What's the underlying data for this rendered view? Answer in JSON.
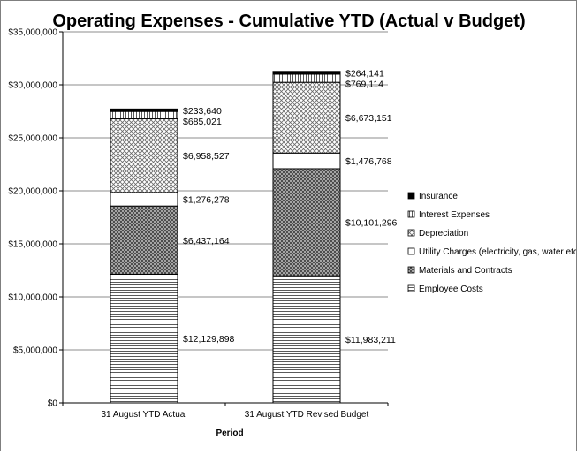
{
  "chart_data": {
    "type": "bar",
    "stacked": true,
    "title": "Operating Expenses - Cumulative YTD (Actual v Budget)",
    "xlabel": "Period",
    "ylabel": "",
    "ylim": [
      0,
      35000000
    ],
    "y_ticks": [
      0,
      5000000,
      10000000,
      15000000,
      20000000,
      25000000,
      30000000,
      35000000
    ],
    "y_tick_labels": [
      "$0",
      "$5,000,000",
      "$10,000,000",
      "$15,000,000",
      "$20,000,000",
      "$25,000,000",
      "$30,000,000",
      "$35,000,000"
    ],
    "grid": true,
    "legend_position": "right",
    "categories": [
      "31 August YTD Actual",
      "31 August YTD Revised Budget"
    ],
    "series": [
      {
        "name": "Employee Costs",
        "pattern": "hlines",
        "values": [
          12129898,
          11983211
        ],
        "labels": [
          "$12,129,898",
          "$11,983,211"
        ]
      },
      {
        "name": "Materials and Contracts",
        "pattern": "darkcross",
        "values": [
          6437164,
          10101296
        ],
        "labels": [
          "$6,437,164",
          "$10,101,296"
        ]
      },
      {
        "name": "Utility Charges (electricity, gas, water etc)",
        "pattern": "white",
        "values": [
          1276278,
          1476768
        ],
        "labels": [
          "$1,276,278",
          "$1,476,768"
        ]
      },
      {
        "name": "Depreciation",
        "pattern": "lightcross",
        "values": [
          6958527,
          6673151
        ],
        "labels": [
          "$6,958,527",
          "$6,673,151"
        ]
      },
      {
        "name": "Interest Expenses",
        "pattern": "vlines",
        "values": [
          685021,
          769114
        ],
        "labels": [
          "$685,021",
          "$769,114"
        ]
      },
      {
        "name": "Insurance",
        "pattern": "solid",
        "values": [
          233640,
          264141
        ],
        "labels": [
          "$233,640",
          "$264,141"
        ]
      }
    ]
  }
}
